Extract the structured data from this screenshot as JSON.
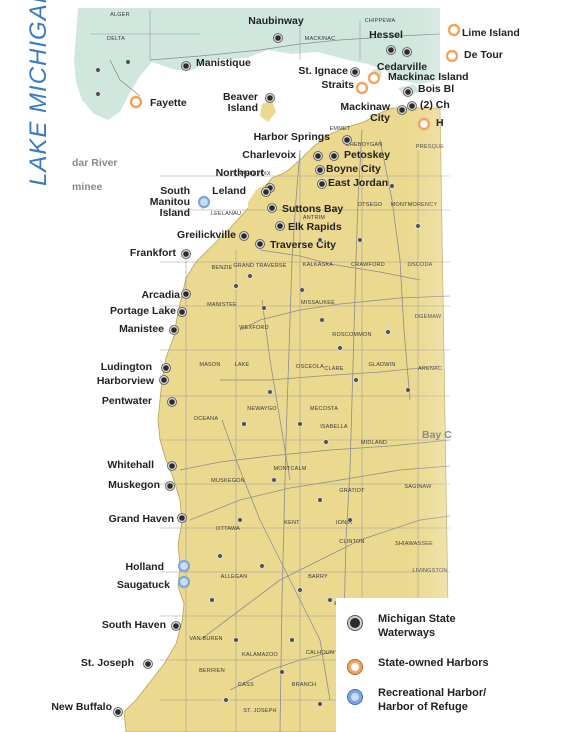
{
  "water_label": "LAKE MICHIGAN",
  "colors": {
    "water": "#ffffff",
    "land_north": "#cfe7dd",
    "land_south": "#ebd98f",
    "roads": "#8d8d8d",
    "label": "#222222",
    "lake_text": "#3a7bbf",
    "state_waterway": "#2b2b2b",
    "state_harbor": "#f0a561",
    "recreational_harbor": "#7fa6dc"
  },
  "legend": [
    {
      "type": "state_waterway",
      "label": "Michigan State\nWaterways"
    },
    {
      "type": "state_harbor",
      "label": "State-owned Harbors"
    },
    {
      "type": "recreational_harbor",
      "label": "Recreational Harbor/\nHarbor of Refuge"
    }
  ],
  "harbors": [
    {
      "name": "Naubinway",
      "type": "state_waterway"
    },
    {
      "name": "Hessel",
      "type": "state_waterway"
    },
    {
      "name": "Lime Island",
      "type": "state_harbor"
    },
    {
      "name": "De Tour",
      "type": "state_harbor"
    },
    {
      "name": "Cedarville",
      "type": "state_waterway"
    },
    {
      "name": "Manistique",
      "type": "state_waterway"
    },
    {
      "name": "St. Ignace",
      "type": "state_waterway"
    },
    {
      "name": "Mackinac Island",
      "type": "state_harbor"
    },
    {
      "name": "Straits",
      "type": "state_harbor"
    },
    {
      "name": "Fayette",
      "type": "state_harbor"
    },
    {
      "name": "Beaver\nIsland",
      "type": "state_waterway"
    },
    {
      "name": "Mackinaw\nCity",
      "type": "state_waterway"
    },
    {
      "name": "Bois Bl",
      "type": "state_waterway"
    },
    {
      "name": "(2) Ch",
      "type": "state_waterway"
    },
    {
      "name": "H",
      "type": "state_harbor"
    },
    {
      "name": "Harbor Springs",
      "type": "state_waterway"
    },
    {
      "name": "Petoskey",
      "type": "state_waterway"
    },
    {
      "name": "Charlevoix",
      "type": "state_waterway"
    },
    {
      "name": "Boyne City",
      "type": "state_waterway"
    },
    {
      "name": "Northport",
      "type": "state_waterway"
    },
    {
      "name": "East Jordan",
      "type": "state_waterway"
    },
    {
      "name": "Leland",
      "type": "state_waterway"
    },
    {
      "name": "South\nManitou\nIsland",
      "type": "recreational_harbor"
    },
    {
      "name": "Suttons Bay",
      "type": "state_waterway"
    },
    {
      "name": "Elk Rapids",
      "type": "state_waterway"
    },
    {
      "name": "Greilickville",
      "type": "state_waterway"
    },
    {
      "name": "Traverse City",
      "type": "state_waterway"
    },
    {
      "name": "Frankfort",
      "type": "state_waterway"
    },
    {
      "name": "Arcadia",
      "type": "state_waterway"
    },
    {
      "name": "Portage Lake",
      "type": "state_waterway"
    },
    {
      "name": "Manistee",
      "type": "state_waterway"
    },
    {
      "name": "Ludington",
      "type": "state_waterway"
    },
    {
      "name": "Harborview",
      "type": "state_waterway"
    },
    {
      "name": "Pentwater",
      "type": "state_waterway"
    },
    {
      "name": "Whitehall",
      "type": "state_waterway"
    },
    {
      "name": "Muskegon",
      "type": "state_waterway"
    },
    {
      "name": "Grand Haven",
      "type": "state_waterway"
    },
    {
      "name": "Holland",
      "type": "recreational_harbor"
    },
    {
      "name": "Saugatuck",
      "type": "recreational_harbor"
    },
    {
      "name": "South Haven",
      "type": "state_waterway"
    },
    {
      "name": "St. Joseph",
      "type": "state_waterway"
    },
    {
      "name": "New Buffalo",
      "type": "state_waterway"
    }
  ],
  "faint_labels": [
    "dar River",
    "minee",
    "Bay C"
  ],
  "counties": [
    "ALGER",
    "DELTA",
    "MACKINAC",
    "CHIPPEWA",
    "EMMET",
    "CHEBOYGAN",
    "PRESQUE",
    "OTSEGO",
    "MONTMORENCY",
    "ANTRIM",
    "CHARLEVOIX",
    "LEELANAU",
    "BENZIE",
    "GRAND TRAVERSE",
    "KALKASKA",
    "CRAWFORD",
    "OSCODA",
    "MANISTEE",
    "WEXFORD",
    "MISSAUKEE",
    "ROSCOMMON",
    "OGEMAW",
    "MASON",
    "LAKE",
    "OSCEOLA",
    "CLARE",
    "GLADWIN",
    "ARENAC",
    "OCEANA",
    "NEWAYGO",
    "MECOSTA",
    "ISABELLA",
    "MIDLAND",
    "MONTCALM",
    "GRATIOT",
    "SAGINAW",
    "MUSKEGON",
    "KENT",
    "IONIA",
    "CLINTON",
    "SHIAWASSEE",
    "OTTAWA",
    "ALLEGAN",
    "BARRY",
    "EATON",
    "INGHAM",
    "LIVINGSTON",
    "VAN BUREN",
    "KALAMAZOO",
    "CALHOUN",
    "BERRIEN",
    "CASS",
    "ST. JOSEPH",
    "BRANCH"
  ]
}
